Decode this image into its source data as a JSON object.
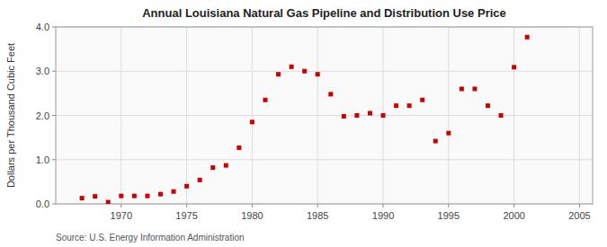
{
  "chart_data": {
    "type": "scatter",
    "title": "Annual Louisiana Natural Gas Pipeline and Distribution Use Price",
    "ylabel": "Dollars per Thousand Cubic Feet",
    "annotations": [
      "Source: U.S. Energy Information Administration"
    ],
    "x": [
      1967,
      1968,
      1969,
      1970,
      1971,
      1972,
      1973,
      1974,
      1975,
      1976,
      1977,
      1978,
      1979,
      1980,
      1981,
      1982,
      1983,
      1984,
      1985,
      1986,
      1987,
      1988,
      1989,
      1990,
      1991,
      1992,
      1993,
      1994,
      1995,
      1996,
      1997,
      1998,
      1999,
      2000,
      2001
    ],
    "values": [
      0.13,
      0.17,
      0.04,
      0.18,
      0.18,
      0.18,
      0.22,
      0.28,
      0.4,
      0.54,
      0.82,
      0.87,
      1.27,
      1.85,
      2.35,
      2.93,
      3.1,
      3.0,
      2.93,
      2.48,
      1.98,
      2.0,
      2.05,
      2.0,
      2.22,
      2.22,
      2.35,
      1.42,
      1.6,
      2.6,
      2.6,
      2.22,
      2.0,
      3.09,
      3.77
    ],
    "color": "#cc0000",
    "marker": "square",
    "xlim": [
      1965,
      2006
    ],
    "ylim": [
      0.0,
      4.0
    ],
    "xticks": [
      1970,
      1975,
      1980,
      1985,
      1990,
      1995,
      2000,
      2005
    ],
    "yticks": [
      {
        "value": 0.0,
        "label": "0.0"
      },
      {
        "value": 1.0,
        "label": "1.0"
      },
      {
        "value": 2.0,
        "label": "2.0"
      },
      {
        "value": 3.0,
        "label": "3.0"
      },
      {
        "value": 4.0,
        "label": "4.0"
      }
    ],
    "grid": true
  }
}
